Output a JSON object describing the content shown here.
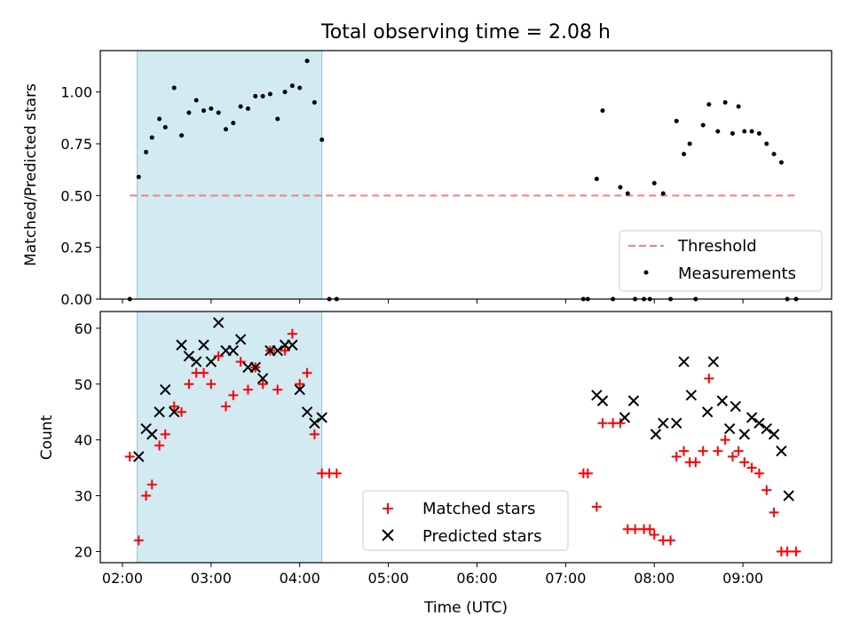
{
  "title": "Total observing time = 2.08 h",
  "colors": {
    "threshold": "#f08080",
    "shade": "#add8e6",
    "matched": "#ff0000",
    "predicted": "#000000",
    "measurement": "#000000"
  },
  "chart_data": [
    {
      "type": "scatter",
      "title": "Total observing time = 2.08 h",
      "xlabel": "",
      "ylabel": "Matched/Predicted stars",
      "xlim": [
        "01:45",
        "10:00"
      ],
      "ylim": [
        0,
        1.2
      ],
      "yticks": [
        "0.00",
        "0.25",
        "0.50",
        "0.75",
        "1.00"
      ],
      "ytick_values": [
        0,
        0.25,
        0.5,
        0.75,
        1.0
      ],
      "shaded_interval": [
        "02:10",
        "04:15"
      ],
      "legend": [
        "Threshold",
        "Measurements"
      ],
      "legend_position": "lower-right",
      "series": [
        {
          "name": "Threshold",
          "kind": "dashed-line",
          "x": [
            "02:05",
            "09:36"
          ],
          "y": [
            0.5,
            0.5
          ]
        },
        {
          "name": "Measurements",
          "kind": "dots",
          "x": [
            "02:05",
            "02:11",
            "02:16",
            "02:20",
            "02:25",
            "02:29",
            "02:35",
            "02:40",
            "02:45",
            "02:50",
            "02:55",
            "03:00",
            "03:05",
            "03:10",
            "03:15",
            "03:20",
            "03:25",
            "03:30",
            "03:35",
            "03:40",
            "03:45",
            "03:50",
            "03:55",
            "04:00",
            "04:05",
            "04:10",
            "04:15",
            "04:20",
            "04:25",
            "07:12",
            "07:15",
            "07:21",
            "07:25",
            "07:32",
            "07:37",
            "07:42",
            "07:47",
            "07:53",
            "07:57",
            "08:00",
            "08:06",
            "08:11",
            "08:15",
            "08:20",
            "08:24",
            "08:28",
            "08:33",
            "08:37",
            "08:43",
            "08:48",
            "08:53",
            "08:57",
            "09:01",
            "09:06",
            "09:11",
            "09:16",
            "09:21",
            "09:26",
            "09:30",
            "09:36"
          ],
          "y": [
            0,
            0.59,
            0.71,
            0.78,
            0.87,
            0.83,
            1.02,
            0.79,
            0.9,
            0.96,
            0.91,
            0.92,
            0.9,
            0.82,
            0.85,
            0.93,
            0.92,
            0.98,
            0.98,
            0.99,
            0.87,
            1.0,
            1.03,
            1.02,
            1.15,
            0.95,
            0.77,
            0,
            0,
            0,
            0,
            0.58,
            0.91,
            0,
            0.54,
            0.51,
            0,
            0,
            0,
            0.56,
            0.51,
            0,
            0.86,
            0.7,
            0.75,
            0,
            0.84,
            0.94,
            0.81,
            0.95,
            0.8,
            0.93,
            0.81,
            0.81,
            0.8,
            0.75,
            0.7,
            0.66,
            0,
            0
          ]
        }
      ]
    },
    {
      "type": "scatter",
      "xlabel": "Time (UTC)",
      "ylabel": "Count",
      "xlim": [
        "01:45",
        "10:00"
      ],
      "xticks": [
        "02:00",
        "03:00",
        "04:00",
        "05:00",
        "06:00",
        "07:00",
        "08:00",
        "09:00"
      ],
      "ylim": [
        18,
        63
      ],
      "yticks": [
        20,
        30,
        40,
        50,
        60
      ],
      "shaded_interval": [
        "02:10",
        "04:15"
      ],
      "legend": [
        "Matched stars",
        "Predicted stars"
      ],
      "legend_position": "bottom-center",
      "series": [
        {
          "name": "Matched stars",
          "marker": "+",
          "x": [
            "02:05",
            "02:11",
            "02:16",
            "02:20",
            "02:25",
            "02:29",
            "02:35",
            "02:40",
            "02:45",
            "02:50",
            "02:55",
            "03:00",
            "03:05",
            "03:10",
            "03:15",
            "03:20",
            "03:25",
            "03:30",
            "03:35",
            "03:40",
            "03:45",
            "03:50",
            "03:55",
            "04:00",
            "04:05",
            "04:10",
            "04:15",
            "04:20",
            "04:25",
            "07:12",
            "07:15",
            "07:21",
            "07:25",
            "07:32",
            "07:37",
            "07:42",
            "07:47",
            "07:53",
            "07:57",
            "08:00",
            "08:06",
            "08:11",
            "08:15",
            "08:20",
            "08:24",
            "08:28",
            "08:33",
            "08:37",
            "08:43",
            "08:48",
            "08:53",
            "08:57",
            "09:01",
            "09:06",
            "09:11",
            "09:16",
            "09:21",
            "09:26",
            "09:30",
            "09:36"
          ],
          "y": [
            37,
            22,
            30,
            32,
            39,
            41,
            46,
            45,
            50,
            52,
            52,
            50,
            55,
            46,
            48,
            54,
            49,
            53,
            50,
            56,
            49,
            56,
            59,
            50,
            52,
            41,
            34,
            34,
            34,
            34,
            34,
            28,
            43,
            43,
            43,
            24,
            24,
            24,
            24,
            23,
            22,
            22,
            37,
            38,
            36,
            36,
            38,
            51,
            38,
            40,
            37,
            38,
            36,
            35,
            34,
            31,
            27,
            20,
            20,
            20
          ]
        },
        {
          "name": "Predicted stars",
          "marker": "x",
          "x": [
            "02:11",
            "02:16",
            "02:20",
            "02:25",
            "02:29",
            "02:35",
            "02:40",
            "02:45",
            "02:50",
            "02:55",
            "03:00",
            "03:05",
            "03:10",
            "03:15",
            "03:20",
            "03:25",
            "03:30",
            "03:35",
            "03:40",
            "03:45",
            "03:50",
            "03:55",
            "04:00",
            "04:05",
            "04:10",
            "04:15",
            "07:21",
            "07:25",
            "07:40",
            "07:46",
            "08:01",
            "08:06",
            "08:15",
            "08:20",
            "08:25",
            "08:36",
            "08:40",
            "08:46",
            "08:51",
            "08:55",
            "09:01",
            "09:06",
            "09:11",
            "09:16",
            "09:21",
            "09:26",
            "09:31"
          ],
          "y": [
            37,
            42,
            41,
            45,
            49,
            45,
            57,
            55,
            54,
            57,
            54,
            61,
            56,
            56,
            58,
            53,
            53,
            51,
            56,
            56,
            57,
            57,
            49,
            45,
            43,
            44,
            48,
            47,
            44,
            47,
            41,
            43,
            43,
            54,
            48,
            45,
            54,
            47,
            42,
            46,
            41,
            44,
            43,
            42,
            41,
            38,
            30
          ]
        }
      ]
    }
  ]
}
